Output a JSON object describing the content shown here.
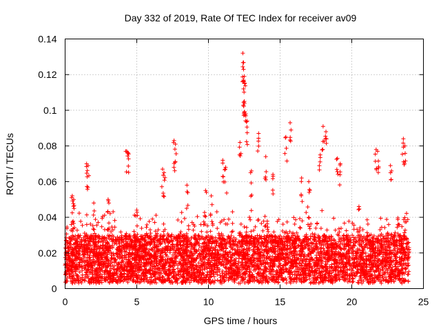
{
  "chart_data": {
    "type": "scatter",
    "title": "Day 332 of 2019, Rate Of TEC Index for receiver av09",
    "xlabel": "GPS time / hours",
    "ylabel": "ROTI / TECUs",
    "xlim": [
      0,
      25
    ],
    "ylim": [
      0,
      0.14
    ],
    "xticks": [
      0,
      5,
      10,
      15,
      20,
      25
    ],
    "yticks": [
      0,
      0.02,
      0.04,
      0.06,
      0.08,
      0.1,
      0.12,
      0.14
    ],
    "xtick_labels": [
      "0",
      "5",
      "10",
      "15",
      "20",
      "25"
    ],
    "ytick_labels": [
      "0",
      "0.02",
      "0.04",
      "0.06",
      "0.08",
      "0.1",
      "0.12",
      "0.14"
    ],
    "grid": true,
    "marker": "+",
    "marker_color": "#ff0000",
    "series": [
      {
        "name": "ROTI",
        "notable_points": {
          "x": [
            12.4,
            12.45,
            12.5,
            12.45,
            12.5,
            12.6,
            12.7,
            15.7,
            13.5,
            15.4,
            18.0,
            18.2,
            7.6,
            7.7,
            4.3,
            4.4,
            1.5,
            1.6,
            23.6,
            23.7,
            21.7,
            21.8,
            11.0,
            11.2,
            17.8,
            14.0,
            19.0,
            19.2,
            22.7,
            6.8,
            6.9,
            0.5,
            0.6,
            3.0,
            10.2,
            9.8,
            16.5,
            17.0,
            2.0,
            20.5,
            5.0,
            8.5,
            13.0,
            14.5,
            12.2
          ],
          "y": [
            0.132,
            0.123,
            0.119,
            0.112,
            0.105,
            0.098,
            0.094,
            0.093,
            0.087,
            0.085,
            0.091,
            0.088,
            0.083,
            0.081,
            0.077,
            0.076,
            0.07,
            0.069,
            0.084,
            0.08,
            0.078,
            0.077,
            0.072,
            0.068,
            0.075,
            0.074,
            0.073,
            0.07,
            0.069,
            0.067,
            0.065,
            0.052,
            0.05,
            0.05,
            0.052,
            0.055,
            0.062,
            0.06,
            0.048,
            0.046,
            0.044,
            0.058,
            0.066,
            0.064,
            0.082
          ]
        },
        "bulk": {
          "x_range": [
            0,
            24
          ],
          "baseline_low": 0.003,
          "baseline_high": 0.03,
          "typical_max": 0.045,
          "approx_point_count": 5000
        }
      }
    ]
  }
}
